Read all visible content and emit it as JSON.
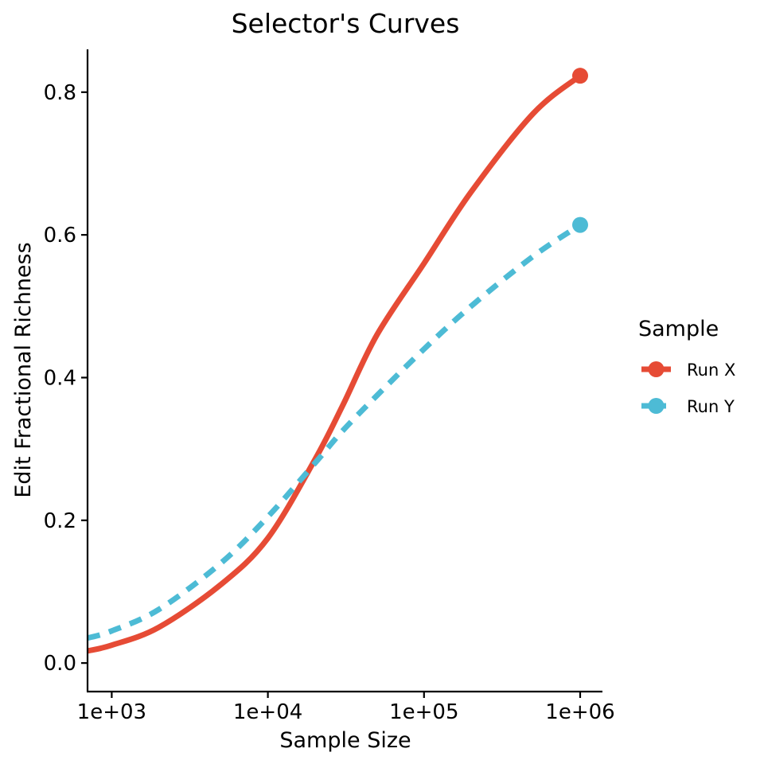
{
  "chart_data": {
    "type": "line",
    "title": "Selector's Curves",
    "xlabel": "Sample Size",
    "ylabel": "Edit Fractional Richness",
    "x_scale": "log10",
    "xlim": [
      700,
      1000000
    ],
    "ylim": [
      -0.04,
      0.86
    ],
    "x_ticks": [
      1000,
      10000,
      100000,
      1000000
    ],
    "x_tick_labels": [
      "1e+03",
      "1e+04",
      "1e+05",
      "1e+06"
    ],
    "y_ticks": [
      0,
      0.2,
      0.4,
      0.6,
      0.8
    ],
    "y_tick_labels": [
      "0.0",
      "0.2",
      "0.4",
      "0.6",
      "0.8"
    ],
    "grid": false,
    "legend": {
      "title": "Sample",
      "position": "right"
    },
    "series": [
      {
        "name": "Run X",
        "color": "#E64B35",
        "dash": "solid",
        "x": [
          700,
          1000,
          2000,
          5000,
          10000,
          20000,
          30000,
          50000,
          100000,
          200000,
          500000,
          1000000
        ],
        "y": [
          0.017,
          0.025,
          0.05,
          0.11,
          0.175,
          0.285,
          0.36,
          0.46,
          0.56,
          0.66,
          0.77,
          0.823
        ],
        "end_marker": true
      },
      {
        "name": "Run Y",
        "color": "#4DBBD5",
        "dash": "dashed",
        "x": [
          700,
          1000,
          2000,
          5000,
          10000,
          20000,
          30000,
          50000,
          100000,
          200000,
          500000,
          1000000
        ],
        "y": [
          0.035,
          0.045,
          0.075,
          0.14,
          0.205,
          0.28,
          0.325,
          0.375,
          0.44,
          0.5,
          0.57,
          0.614
        ],
        "end_marker": true
      }
    ]
  }
}
